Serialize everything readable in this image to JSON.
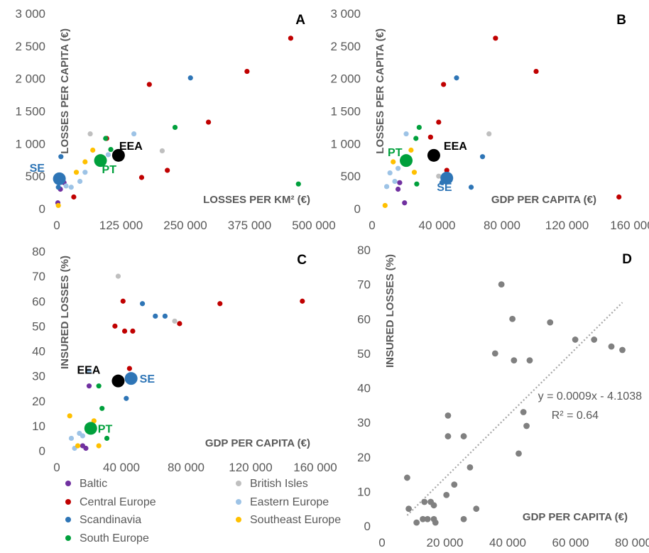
{
  "groups": [
    {
      "key": "baltic",
      "name": "Baltic",
      "color": "#7030a0"
    },
    {
      "key": "british",
      "name": "British Isles",
      "color": "#bfbfbf"
    },
    {
      "key": "central",
      "name": "Central Europe",
      "color": "#c00000"
    },
    {
      "key": "eastern",
      "name": "Eastern Europe",
      "color": "#9dc3e6"
    },
    {
      "key": "scandinavia",
      "name": "Scandinavia",
      "color": "#2e75b6"
    },
    {
      "key": "southeast",
      "name": "Southeast Europe",
      "color": "#ffc000"
    },
    {
      "key": "south",
      "name": "South Europe",
      "color": "#00a03c"
    }
  ],
  "special_colors": {
    "EEA": "#000000",
    "PT": "#00a03c",
    "SE": "#2e75b6",
    "trend": "#a6a6a6",
    "panel_d_points": "#808080",
    "tick_text": "#595959"
  },
  "chart_data": [
    {
      "panel": "A",
      "type": "scatter",
      "xlabel": "LOSSES PER KM² (€)",
      "ylabel": "LOSSES PER CAPITA (€)",
      "xlim": [
        0,
        500000
      ],
      "ylim": [
        0,
        3000
      ],
      "xticks": [
        0,
        125000,
        250000,
        375000,
        500000
      ],
      "xtick_labels": [
        "0",
        "125 000",
        "250 000",
        "375 000",
        "500 000"
      ],
      "yticks": [
        0,
        500,
        1000,
        1500,
        2000,
        2500,
        3000
      ],
      "ytick_labels": [
        "0",
        "500",
        "1 000",
        "1 500",
        "2 000",
        "2 500",
        "3 000"
      ],
      "points": [
        {
          "g": "baltic",
          "x": 2000,
          "y": 90
        },
        {
          "g": "baltic",
          "x": 7000,
          "y": 300
        },
        {
          "g": "baltic",
          "x": 14000,
          "y": 400
        },
        {
          "g": "british",
          "x": 65000,
          "y": 1150
        },
        {
          "g": "british",
          "x": 205000,
          "y": 890
        },
        {
          "g": "central",
          "x": 33000,
          "y": 180
        },
        {
          "g": "central",
          "x": 97000,
          "y": 1080
        },
        {
          "g": "central",
          "x": 165000,
          "y": 480
        },
        {
          "g": "central",
          "x": 180000,
          "y": 1910
        },
        {
          "g": "central",
          "x": 215000,
          "y": 590
        },
        {
          "g": "central",
          "x": 295000,
          "y": 1330
        },
        {
          "g": "central",
          "x": 370000,
          "y": 2110
        },
        {
          "g": "central",
          "x": 455000,
          "y": 2620
        },
        {
          "g": "eastern",
          "x": 18000,
          "y": 350
        },
        {
          "g": "eastern",
          "x": 28000,
          "y": 330
        },
        {
          "g": "eastern",
          "x": 45000,
          "y": 420
        },
        {
          "g": "eastern",
          "x": 55000,
          "y": 560
        },
        {
          "g": "eastern",
          "x": 100000,
          "y": 830
        },
        {
          "g": "eastern",
          "x": 150000,
          "y": 1150
        },
        {
          "g": "scandinavia",
          "x": 3000,
          "y": 330
        },
        {
          "g": "scandinavia",
          "x": 8000,
          "y": 800
        },
        {
          "g": "scandinavia",
          "x": 260000,
          "y": 2010
        },
        {
          "g": "southeast",
          "x": 3000,
          "y": 50
        },
        {
          "g": "southeast",
          "x": 38000,
          "y": 560
        },
        {
          "g": "southeast",
          "x": 55000,
          "y": 720
        },
        {
          "g": "southeast",
          "x": 70000,
          "y": 900
        },
        {
          "g": "south",
          "x": 95000,
          "y": 1080
        },
        {
          "g": "south",
          "x": 105000,
          "y": 910
        },
        {
          "g": "south",
          "x": 230000,
          "y": 1250
        },
        {
          "g": "south",
          "x": 470000,
          "y": 380
        }
      ],
      "highlights": [
        {
          "label": "EEA",
          "x": 120000,
          "y": 820
        },
        {
          "label": "PT",
          "x": 85000,
          "y": 740
        },
        {
          "label": "SE",
          "x": 5000,
          "y": 460
        }
      ]
    },
    {
      "panel": "B",
      "type": "scatter",
      "xlabel": "GDP PER CAPITA (€)",
      "ylabel": "LOSSES PER CAPITA (€)",
      "xlim": [
        0,
        160000
      ],
      "ylim": [
        0,
        3000
      ],
      "xticks": [
        0,
        40000,
        80000,
        120000,
        160000
      ],
      "xtick_labels": [
        "0",
        "40 000",
        "80 000",
        "120 000",
        "160 000"
      ],
      "yticks": [
        0,
        500,
        1000,
        1500,
        2000,
        2500,
        3000
      ],
      "ytick_labels": [
        "0",
        "500",
        "1 000",
        "1 500",
        "2 000",
        "2 500",
        "3 000"
      ],
      "points": [
        {
          "g": "baltic",
          "x": 16000,
          "y": 300
        },
        {
          "g": "baltic",
          "x": 17000,
          "y": 400
        },
        {
          "g": "baltic",
          "x": 20000,
          "y": 90
        },
        {
          "g": "british",
          "x": 72000,
          "y": 1150
        },
        {
          "g": "british",
          "x": 41000,
          "y": 500
        },
        {
          "g": "central",
          "x": 36000,
          "y": 1100
        },
        {
          "g": "central",
          "x": 41000,
          "y": 1330
        },
        {
          "g": "central",
          "x": 44000,
          "y": 1910
        },
        {
          "g": "central",
          "x": 46000,
          "y": 590
        },
        {
          "g": "central",
          "x": 76000,
          "y": 2620
        },
        {
          "g": "central",
          "x": 101000,
          "y": 2110
        },
        {
          "g": "central",
          "x": 152000,
          "y": 180
        },
        {
          "g": "eastern",
          "x": 9000,
          "y": 340
        },
        {
          "g": "eastern",
          "x": 11000,
          "y": 550
        },
        {
          "g": "eastern",
          "x": 14000,
          "y": 420
        },
        {
          "g": "eastern",
          "x": 16000,
          "y": 620
        },
        {
          "g": "eastern",
          "x": 21000,
          "y": 1150
        },
        {
          "g": "scandinavia",
          "x": 43000,
          "y": 400
        },
        {
          "g": "scandinavia",
          "x": 52000,
          "y": 2010
        },
        {
          "g": "scandinavia",
          "x": 61000,
          "y": 330
        },
        {
          "g": "scandinavia",
          "x": 68000,
          "y": 800
        },
        {
          "g": "southeast",
          "x": 8000,
          "y": 50
        },
        {
          "g": "southeast",
          "x": 13000,
          "y": 720
        },
        {
          "g": "southeast",
          "x": 24000,
          "y": 900
        },
        {
          "g": "southeast",
          "x": 26000,
          "y": 560
        },
        {
          "g": "south",
          "x": 27000,
          "y": 1080
        },
        {
          "g": "south",
          "x": 27500,
          "y": 380
        },
        {
          "g": "south",
          "x": 29000,
          "y": 1250
        }
      ],
      "highlights": [
        {
          "label": "EEA",
          "x": 38000,
          "y": 820
        },
        {
          "label": "PT",
          "x": 21000,
          "y": 740
        },
        {
          "label": "SE",
          "x": 46000,
          "y": 470
        }
      ]
    },
    {
      "panel": "C",
      "type": "scatter",
      "xlabel": "GDP PER CAPITA (€)",
      "ylabel": "INSURED LOSSES (%)",
      "xlim": [
        0,
        160000
      ],
      "ylim": [
        0,
        80
      ],
      "xticks": [
        0,
        40000,
        80000,
        120000,
        160000
      ],
      "xtick_labels": [
        "0",
        "40 000",
        "80 000",
        "120 000",
        "160 000"
      ],
      "yticks": [
        0,
        10,
        20,
        30,
        40,
        50,
        60,
        70,
        80
      ],
      "ytick_labels": [
        "0",
        "10",
        "20",
        "30",
        "40",
        "50",
        "60",
        "70",
        "80"
      ],
      "points": [
        {
          "g": "baltic",
          "x": 16000,
          "y": 2
        },
        {
          "g": "baltic",
          "x": 18000,
          "y": 1
        },
        {
          "g": "baltic",
          "x": 20000,
          "y": 26
        },
        {
          "g": "british",
          "x": 38000,
          "y": 70
        },
        {
          "g": "british",
          "x": 73000,
          "y": 52
        },
        {
          "g": "central",
          "x": 36000,
          "y": 50
        },
        {
          "g": "central",
          "x": 41000,
          "y": 60
        },
        {
          "g": "central",
          "x": 42000,
          "y": 48
        },
        {
          "g": "central",
          "x": 45000,
          "y": 33
        },
        {
          "g": "central",
          "x": 47000,
          "y": 48
        },
        {
          "g": "central",
          "x": 76000,
          "y": 51
        },
        {
          "g": "central",
          "x": 101000,
          "y": 59
        },
        {
          "g": "central",
          "x": 152000,
          "y": 60
        },
        {
          "g": "eastern",
          "x": 9000,
          "y": 5
        },
        {
          "g": "eastern",
          "x": 11000,
          "y": 1
        },
        {
          "g": "eastern",
          "x": 14000,
          "y": 7
        },
        {
          "g": "eastern",
          "x": 16000,
          "y": 6
        },
        {
          "g": "eastern",
          "x": 20000,
          "y": 32
        },
        {
          "g": "scandinavia",
          "x": 43000,
          "y": 21
        },
        {
          "g": "scandinavia",
          "x": 53000,
          "y": 59
        },
        {
          "g": "scandinavia",
          "x": 61000,
          "y": 54
        },
        {
          "g": "scandinavia",
          "x": 67000,
          "y": 54
        },
        {
          "g": "southeast",
          "x": 8000,
          "y": 14
        },
        {
          "g": "southeast",
          "x": 13000,
          "y": 2
        },
        {
          "g": "southeast",
          "x": 23000,
          "y": 12
        },
        {
          "g": "southeast",
          "x": 26000,
          "y": 2
        },
        {
          "g": "south",
          "x": 26000,
          "y": 26
        },
        {
          "g": "south",
          "x": 28000,
          "y": 17
        },
        {
          "g": "south",
          "x": 31000,
          "y": 5
        }
      ],
      "highlights": [
        {
          "label": "EEA",
          "x": 38000,
          "y": 28
        },
        {
          "label": "PT",
          "x": 21000,
          "y": 9
        },
        {
          "label": "SE",
          "x": 46000,
          "y": 29
        }
      ]
    },
    {
      "panel": "D",
      "type": "scatter",
      "xlabel": "GDP PER CAPITA (€)",
      "ylabel": "INSURED LOSSES (%)",
      "xlim": [
        0,
        80000
      ],
      "ylim": [
        0,
        80
      ],
      "xticks": [
        0,
        20000,
        40000,
        60000,
        80000
      ],
      "xtick_labels": [
        "0",
        "20 000",
        "40 000",
        "60 000",
        "80 000"
      ],
      "yticks": [
        0,
        10,
        20,
        30,
        40,
        50,
        60,
        70,
        80
      ],
      "ytick_labels": [
        "0",
        "10",
        "20",
        "30",
        "40",
        "50",
        "60",
        "70",
        "80"
      ],
      "points": [
        {
          "x": 8000,
          "y": 14
        },
        {
          "x": 8500,
          "y": 5
        },
        {
          "x": 11000,
          "y": 1
        },
        {
          "x": 13000,
          "y": 2
        },
        {
          "x": 13500,
          "y": 7
        },
        {
          "x": 14500,
          "y": 2
        },
        {
          "x": 15500,
          "y": 7
        },
        {
          "x": 16500,
          "y": 2
        },
        {
          "x": 16500,
          "y": 6
        },
        {
          "x": 17000,
          "y": 1
        },
        {
          "x": 20500,
          "y": 9
        },
        {
          "x": 21000,
          "y": 26
        },
        {
          "x": 21000,
          "y": 32
        },
        {
          "x": 23000,
          "y": 12
        },
        {
          "x": 26000,
          "y": 2
        },
        {
          "x": 26000,
          "y": 26
        },
        {
          "x": 28000,
          "y": 17
        },
        {
          "x": 30000,
          "y": 5
        },
        {
          "x": 36000,
          "y": 50
        },
        {
          "x": 38000,
          "y": 70
        },
        {
          "x": 41500,
          "y": 60
        },
        {
          "x": 42000,
          "y": 48
        },
        {
          "x": 43500,
          "y": 21
        },
        {
          "x": 45000,
          "y": 33
        },
        {
          "x": 46000,
          "y": 29
        },
        {
          "x": 47000,
          "y": 48
        },
        {
          "x": 53500,
          "y": 59
        },
        {
          "x": 61500,
          "y": 54
        },
        {
          "x": 67500,
          "y": 54
        },
        {
          "x": 73000,
          "y": 52
        },
        {
          "x": 76500,
          "y": 51
        }
      ],
      "trendline": {
        "slope": 0.0009,
        "intercept": -4.1038,
        "x_from": 8000,
        "x_to": 76500
      },
      "equation": "y = 0.0009x - 4.1038",
      "r2": "R² = 0.64"
    }
  ]
}
